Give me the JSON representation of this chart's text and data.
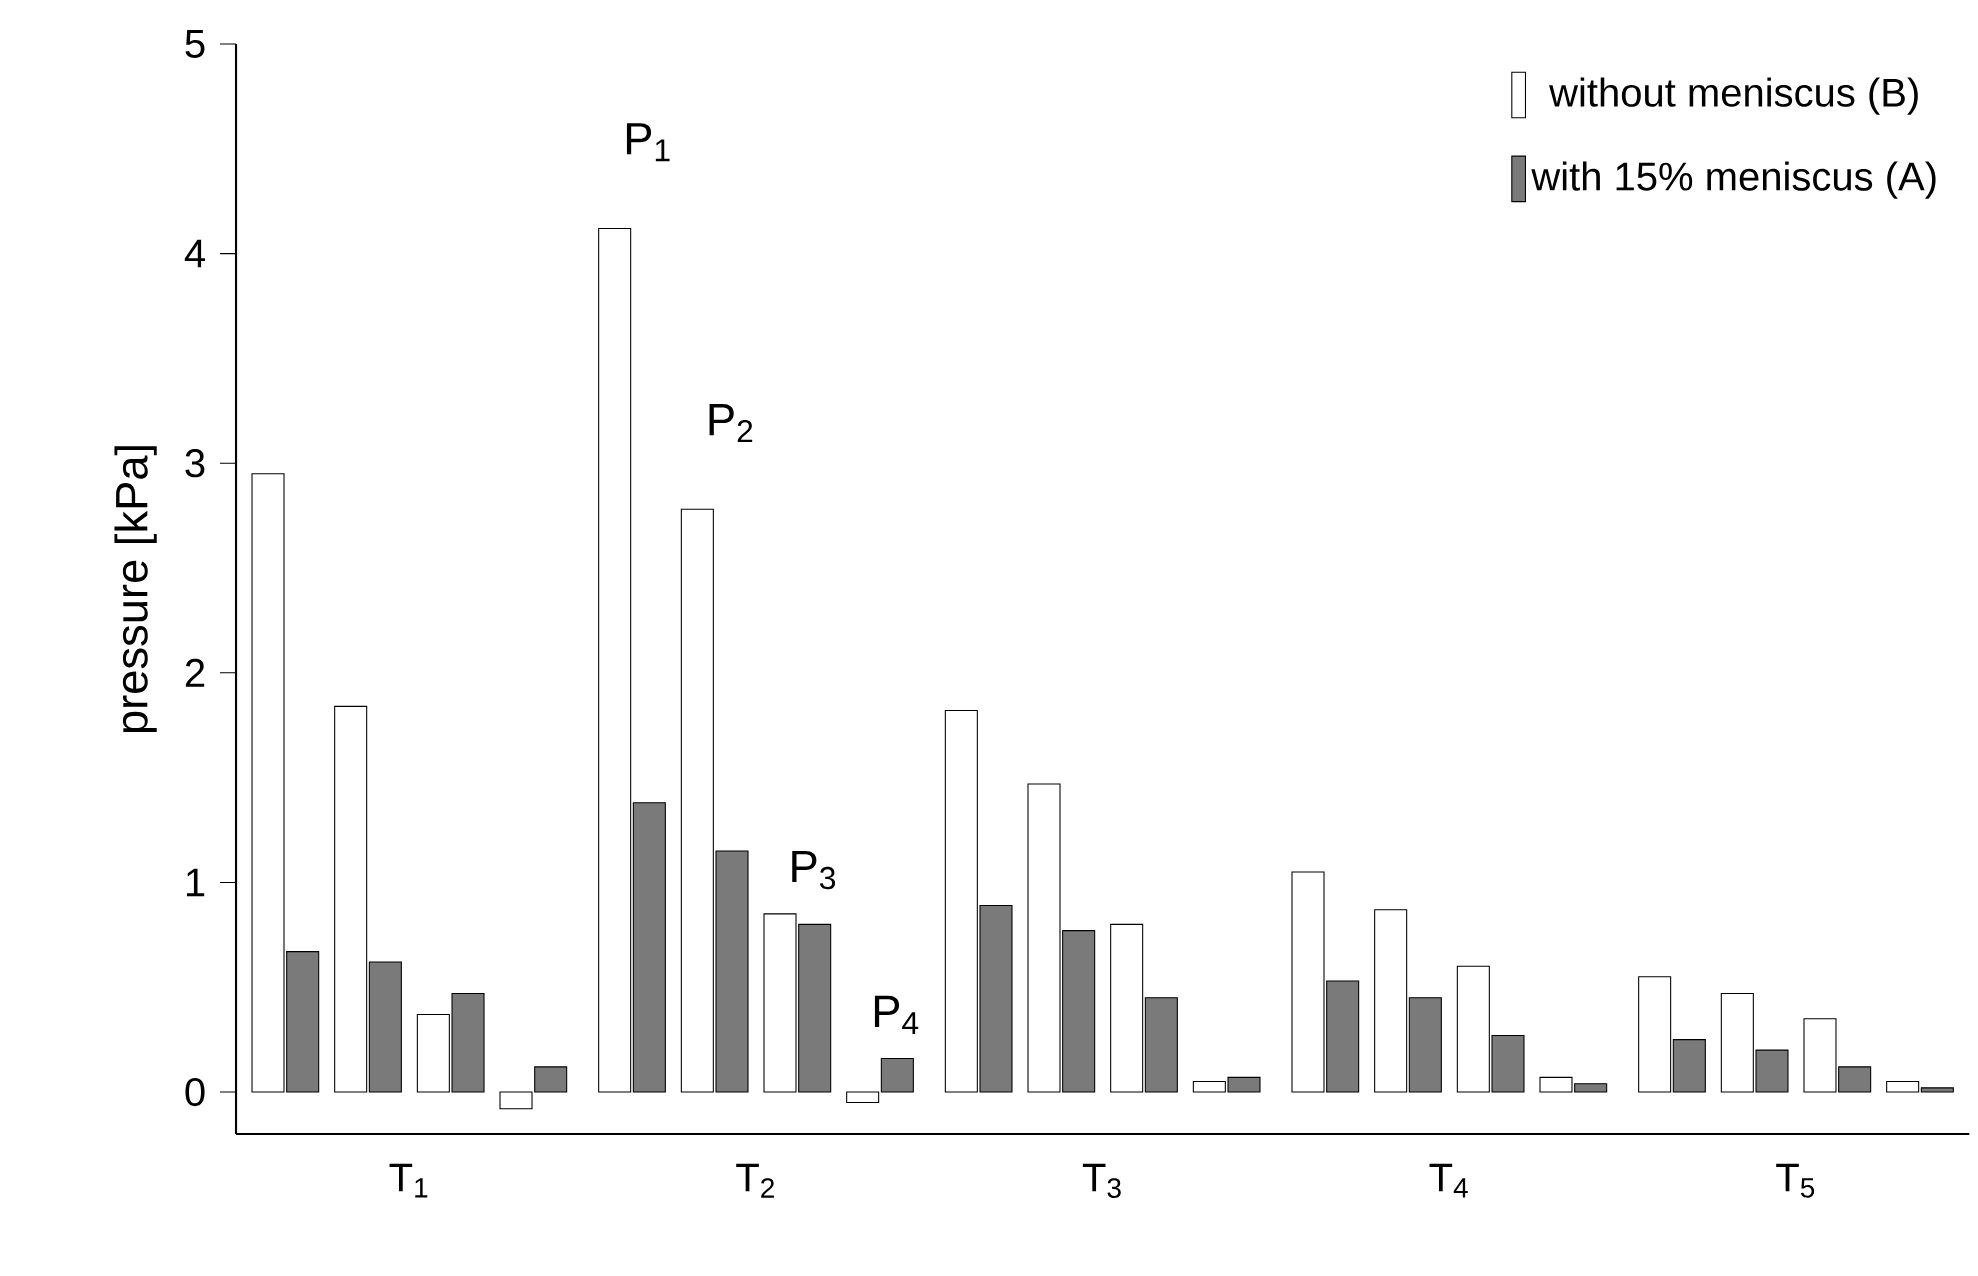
{
  "chart_data": {
    "type": "bar",
    "ylabel": "pressure [kPa]",
    "categories": [
      "T$_{1}$",
      "T$_{2}$",
      "T$_{3}$",
      "T$_{4}$",
      "T$_{5}$"
    ],
    "series": [
      {
        "name": "without meniscus (B)",
        "color": "#ffffff",
        "values": [
          2.95,
          4.12,
          1.82,
          1.05,
          0.55
        ]
      },
      {
        "name": "with 15% meniscus (A)",
        "color": "#7a7a7a",
        "values": [
          0.67,
          1.38,
          0.89,
          0.53,
          0.25
        ]
      },
      {
        "color": "#ffffff",
        "values": [
          1.84,
          2.78,
          1.47,
          0.87,
          0.47
        ]
      },
      {
        "color": "#7a7a7a",
        "values": [
          0.62,
          1.15,
          0.77,
          0.45,
          0.2
        ]
      },
      {
        "color": "#ffffff",
        "values": [
          0.37,
          0.85,
          0.8,
          0.6,
          0.35
        ]
      },
      {
        "color": "#7a7a7a",
        "values": [
          0.47,
          0.8,
          0.45,
          0.27,
          0.12
        ]
      },
      {
        "color": "#ffffff",
        "values": [
          -0.08,
          -0.05,
          0.05,
          0.07,
          0.05
        ]
      },
      {
        "color": "#7a7a7a",
        "values": [
          0.12,
          0.16,
          0.07,
          0.04,
          0.02
        ]
      }
    ],
    "annotations": [
      "P$_{1}$",
      "P$_{2}$",
      {
        "text": "P$_{3}$",
        "x": "T$_{2}$",
        "y": 0.85
      },
      {
        "text": "P$_{4}$",
        "x": "T$_{2}$",
        "y": 0.16
      }
    ],
    "ylim": [
      -0.2,
      5
    ],
    "yticks": [
      0,
      1,
      2,
      3,
      4,
      5
    ],
    "legend": "top right"
  }
}
